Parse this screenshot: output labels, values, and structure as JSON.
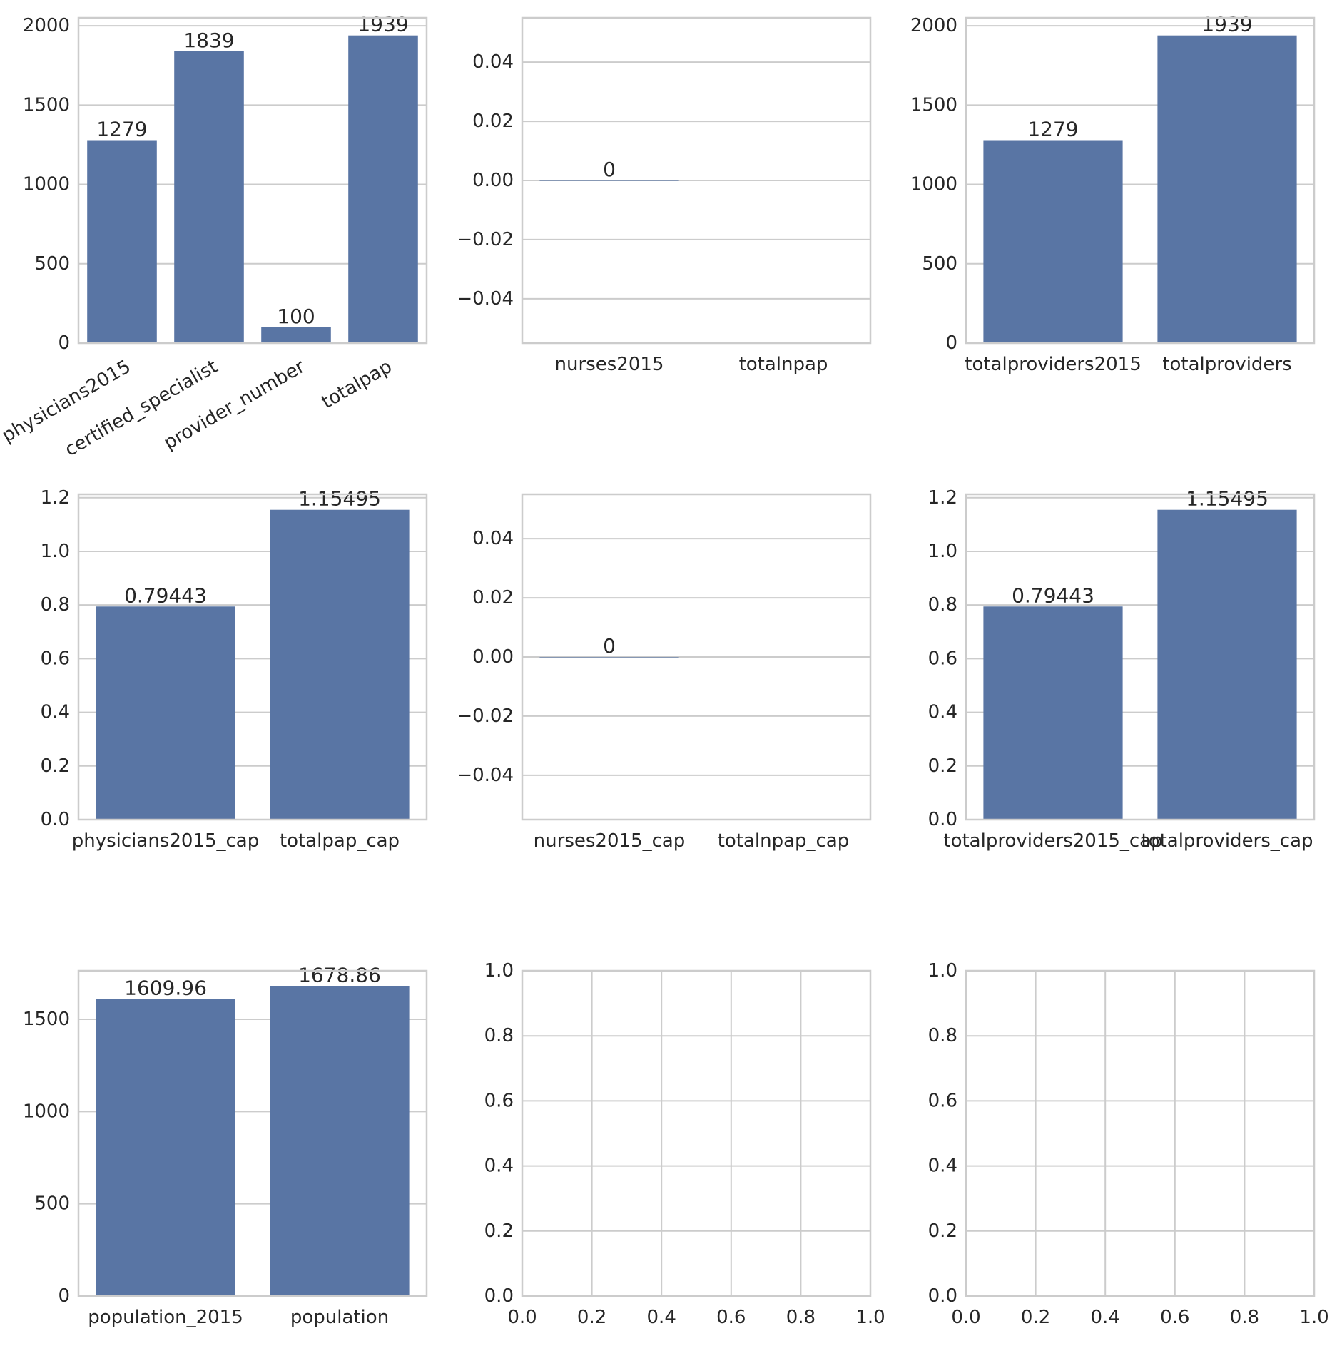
{
  "chart_data": [
    {
      "type": "bar",
      "categories": [
        "physicians2015",
        "certified_specialist",
        "provider_number",
        "totalpap"
      ],
      "values": [
        1279,
        1839,
        100,
        1939
      ],
      "data_labels": [
        "1279",
        "1839",
        "100",
        "1939"
      ],
      "xlabel_rotation": 30,
      "ylim": [
        0,
        2050
      ],
      "yticks": [
        0,
        500,
        1000,
        1500,
        2000
      ],
      "ytick_labels": [
        "0",
        "500",
        "1000",
        "1500",
        "2000"
      ],
      "grid": "y"
    },
    {
      "type": "bar",
      "categories": [
        "nurses2015",
        "totalnpap"
      ],
      "values": [
        0,
        null
      ],
      "data_labels": [
        "0",
        ""
      ],
      "ylim": [
        -0.055,
        0.055
      ],
      "yticks": [
        -0.04,
        -0.02,
        0.0,
        0.02,
        0.04
      ],
      "ytick_labels": [
        "−0.04",
        "−0.02",
        "0.00",
        "0.02",
        "0.04"
      ],
      "grid": "y"
    },
    {
      "type": "bar",
      "categories": [
        "totalproviders2015",
        "totalproviders"
      ],
      "values": [
        1279,
        1939
      ],
      "data_labels": [
        "1279",
        "1939"
      ],
      "ylim": [
        0,
        2050
      ],
      "yticks": [
        0,
        500,
        1000,
        1500,
        2000
      ],
      "ytick_labels": [
        "0",
        "500",
        "1000",
        "1500",
        "2000"
      ],
      "grid": "y"
    },
    {
      "type": "bar",
      "categories": [
        "physicians2015_cap",
        "totalpap_cap"
      ],
      "values": [
        0.79443,
        1.15495
      ],
      "data_labels": [
        "0.79443",
        "1.15495"
      ],
      "ylim": [
        0,
        1.2127
      ],
      "yticks": [
        0.0,
        0.2,
        0.4,
        0.6,
        0.8,
        1.0,
        1.2
      ],
      "ytick_labels": [
        "0.0",
        "0.2",
        "0.4",
        "0.6",
        "0.8",
        "1.0",
        "1.2"
      ],
      "grid": "y"
    },
    {
      "type": "bar",
      "categories": [
        "nurses2015_cap",
        "totalnpap_cap"
      ],
      "values": [
        0,
        null
      ],
      "data_labels": [
        "0",
        ""
      ],
      "ylim": [
        -0.055,
        0.055
      ],
      "yticks": [
        -0.04,
        -0.02,
        0.0,
        0.02,
        0.04
      ],
      "ytick_labels": [
        "−0.04",
        "−0.02",
        "0.00",
        "0.02",
        "0.04"
      ],
      "grid": "y"
    },
    {
      "type": "bar",
      "categories": [
        "totalproviders2015_cap",
        "totalproviders_cap"
      ],
      "values": [
        0.79443,
        1.15495
      ],
      "data_labels": [
        "0.79443",
        "1.15495"
      ],
      "ylim": [
        0,
        1.2127
      ],
      "yticks": [
        0.0,
        0.2,
        0.4,
        0.6,
        0.8,
        1.0,
        1.2
      ],
      "ytick_labels": [
        "0.0",
        "0.2",
        "0.4",
        "0.6",
        "0.8",
        "1.0",
        "1.2"
      ],
      "grid": "y"
    },
    {
      "type": "bar",
      "categories": [
        "population_2015",
        "population"
      ],
      "values": [
        1609.96,
        1678.86
      ],
      "data_labels": [
        "1609.96",
        "1678.86"
      ],
      "ylim": [
        0,
        1762.8
      ],
      "yticks": [
        0,
        500,
        1000,
        1500
      ],
      "ytick_labels": [
        "0",
        "500",
        "1000",
        "1500"
      ],
      "grid": "y"
    },
    {
      "type": "empty",
      "xlim": [
        0,
        1
      ],
      "ylim": [
        0,
        1
      ],
      "xticks": [
        0.0,
        0.2,
        0.4,
        0.6,
        0.8,
        1.0
      ],
      "xtick_labels": [
        "0.0",
        "0.2",
        "0.4",
        "0.6",
        "0.8",
        "1.0"
      ],
      "yticks": [
        0.0,
        0.2,
        0.4,
        0.6,
        0.8,
        1.0
      ],
      "ytick_labels": [
        "0.0",
        "0.2",
        "0.4",
        "0.6",
        "0.8",
        "1.0"
      ],
      "grid": "both"
    },
    {
      "type": "empty",
      "xlim": [
        0,
        1
      ],
      "ylim": [
        0,
        1
      ],
      "xticks": [
        0.0,
        0.2,
        0.4,
        0.6,
        0.8,
        1.0
      ],
      "xtick_labels": [
        "0.0",
        "0.2",
        "0.4",
        "0.6",
        "0.8",
        "1.0"
      ],
      "yticks": [
        0.0,
        0.2,
        0.4,
        0.6,
        0.8,
        1.0
      ],
      "ytick_labels": [
        "0.0",
        "0.2",
        "0.4",
        "0.6",
        "0.8",
        "1.0"
      ],
      "grid": "both"
    }
  ],
  "colors": {
    "bar": "#5975a4",
    "grid": "#cccccc",
    "text": "#262626"
  }
}
